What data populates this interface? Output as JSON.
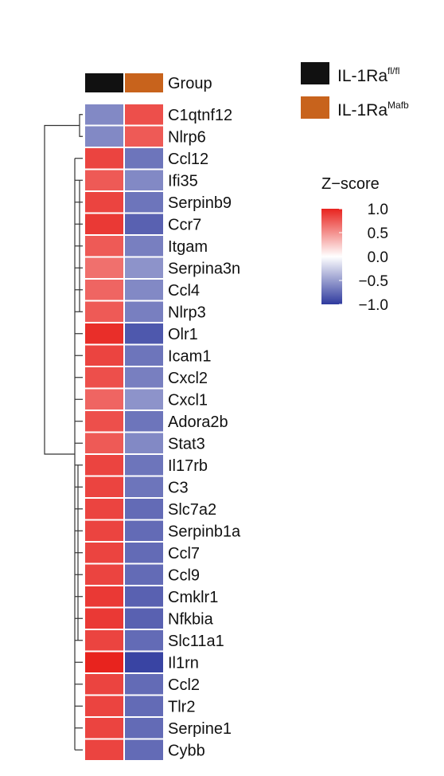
{
  "chart_data": {
    "type": "heatmap",
    "group_row_label": "Group",
    "columns": [
      {
        "name_base": "IL-1Ra",
        "name_sup": "fl/fl",
        "color": "#111111"
      },
      {
        "name_base": "IL-1Ra",
        "name_sup": "Mafb",
        "color": "#C8631C"
      }
    ],
    "genes": [
      "C1qtnf12",
      "Nlrp6",
      "Ccl12",
      "Ifi35",
      "Serpinb9",
      "Ccr7",
      "Itgam",
      "Serpina3n",
      "Ccl4",
      "Nlrp3",
      "Olr1",
      "Icam1",
      "Cxcl2",
      "Cxcl1",
      "Adora2b",
      "Stat3",
      "Il17rb",
      "C3",
      "Slc7a2",
      "Serpinb1a",
      "Ccl7",
      "Ccl9",
      "Cmklr1",
      "Nfkbia",
      "Slc11a1",
      "Il1rn",
      "Ccl2",
      "Tlr2",
      "Serpine1",
      "Cybb"
    ],
    "values": [
      [
        -0.6,
        0.8
      ],
      [
        -0.6,
        0.75
      ],
      [
        0.85,
        -0.7
      ],
      [
        0.75,
        -0.6
      ],
      [
        0.85,
        -0.7
      ],
      [
        0.9,
        -0.8
      ],
      [
        0.75,
        -0.65
      ],
      [
        0.65,
        -0.55
      ],
      [
        0.7,
        -0.6
      ],
      [
        0.75,
        -0.65
      ],
      [
        0.95,
        -0.85
      ],
      [
        0.85,
        -0.7
      ],
      [
        0.8,
        -0.65
      ],
      [
        0.7,
        -0.55
      ],
      [
        0.8,
        -0.7
      ],
      [
        0.75,
        -0.6
      ],
      [
        0.85,
        -0.7
      ],
      [
        0.85,
        -0.7
      ],
      [
        0.85,
        -0.75
      ],
      [
        0.85,
        -0.75
      ],
      [
        0.85,
        -0.75
      ],
      [
        0.85,
        -0.75
      ],
      [
        0.9,
        -0.8
      ],
      [
        0.9,
        -0.8
      ],
      [
        0.85,
        -0.75
      ],
      [
        1.0,
        -0.95
      ],
      [
        0.85,
        -0.75
      ],
      [
        0.85,
        -0.75
      ],
      [
        0.85,
        -0.75
      ],
      [
        0.85,
        -0.75
      ]
    ],
    "colorbar": {
      "title": "Z−score",
      "ticks": [
        1.0,
        0.5,
        0.0,
        -0.5,
        -1.0
      ],
      "tick_labels": [
        "1.0",
        "0.5",
        "0.0",
        "−0.5",
        "−1.0"
      ],
      "range": [
        -1.0,
        1.0
      ],
      "colors": {
        "high": "#E8231E",
        "mid": "#FFFFFF",
        "low": "#2F3A9E"
      }
    },
    "dendrogram": "row clustering: C1qtnf12 and Nlrp6 separate from all other genes"
  }
}
